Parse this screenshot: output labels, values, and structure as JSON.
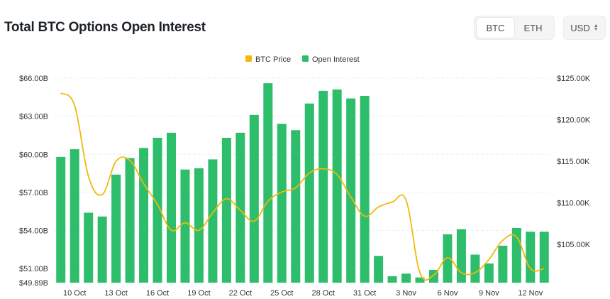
{
  "header": {
    "title": "Total BTC Options Open Interest"
  },
  "asset_toggle": {
    "options": [
      "BTC",
      "ETH"
    ],
    "selected": "BTC"
  },
  "currency_select": {
    "value": "USD"
  },
  "chart_data": {
    "type": "bar",
    "legend": [
      "BTC Price",
      "Open Interest"
    ],
    "colors": {
      "bar": "#2ebd6b",
      "line": "#f0b90b"
    },
    "categories": [
      "9 Oct",
      "10 Oct",
      "11 Oct",
      "12 Oct",
      "13 Oct",
      "14 Oct",
      "15 Oct",
      "16 Oct",
      "17 Oct",
      "18 Oct",
      "19 Oct",
      "20 Oct",
      "21 Oct",
      "22 Oct",
      "23 Oct",
      "24 Oct",
      "25 Oct",
      "26 Oct",
      "27 Oct",
      "28 Oct",
      "29 Oct",
      "30 Oct",
      "31 Oct",
      "1 Nov",
      "2 Nov",
      "3 Nov",
      "4 Nov",
      "5 Nov",
      "6 Nov",
      "7 Nov",
      "8 Nov",
      "9 Nov",
      "10 Nov",
      "11 Nov",
      "12 Nov",
      "13 Nov"
    ],
    "x_tick_labels": [
      "10 Oct",
      "13 Oct",
      "16 Oct",
      "19 Oct",
      "22 Oct",
      "25 Oct",
      "28 Oct",
      "31 Oct",
      "3 Nov",
      "6 Nov",
      "9 Nov",
      "12 Nov"
    ],
    "series": [
      {
        "name": "Open Interest",
        "type": "bar",
        "axis": "left",
        "unit": "USD billions",
        "values": [
          59.8,
          60.4,
          55.4,
          55.1,
          58.4,
          59.7,
          60.5,
          61.3,
          61.7,
          58.8,
          58.9,
          59.6,
          61.3,
          61.7,
          63.1,
          65.6,
          62.4,
          61.9,
          64.0,
          65.0,
          65.1,
          64.4,
          64.6,
          52.0,
          50.4,
          50.6,
          50.3,
          50.9,
          53.7,
          54.1,
          52.1,
          51.4,
          52.8,
          54.2,
          53.9,
          53.9
        ]
      },
      {
        "name": "BTC Price",
        "type": "line",
        "axis": "right",
        "unit": "USD",
        "values": [
          123200,
          121700,
          113200,
          111000,
          115000,
          115100,
          112300,
          109800,
          106700,
          107600,
          106700,
          108800,
          110500,
          109100,
          107800,
          110200,
          111300,
          111800,
          113600,
          114100,
          113400,
          110700,
          108400,
          109500,
          110100,
          110300,
          101600,
          101300,
          103400,
          101600,
          101600,
          103200,
          105500,
          105900,
          102100,
          102100
        ]
      }
    ],
    "y_left": {
      "ticks": [
        "$66.00B",
        "$63.00B",
        "$60.00B",
        "$57.00B",
        "$54.00B",
        "$51.00B",
        "$49.89B"
      ],
      "tick_values": [
        66,
        63,
        60,
        57,
        54,
        51,
        49.89
      ],
      "range": [
        49.89,
        66
      ]
    },
    "y_right": {
      "ticks": [
        "$125.00K",
        "$120.00K",
        "$115.00K",
        "$110.00K",
        "$105.00K"
      ],
      "tick_values": [
        125000,
        120000,
        115000,
        110000,
        105000
      ],
      "range": [
        100400,
        125000
      ]
    },
    "grid": "horizontal dashed",
    "legend_position": "top-center"
  }
}
